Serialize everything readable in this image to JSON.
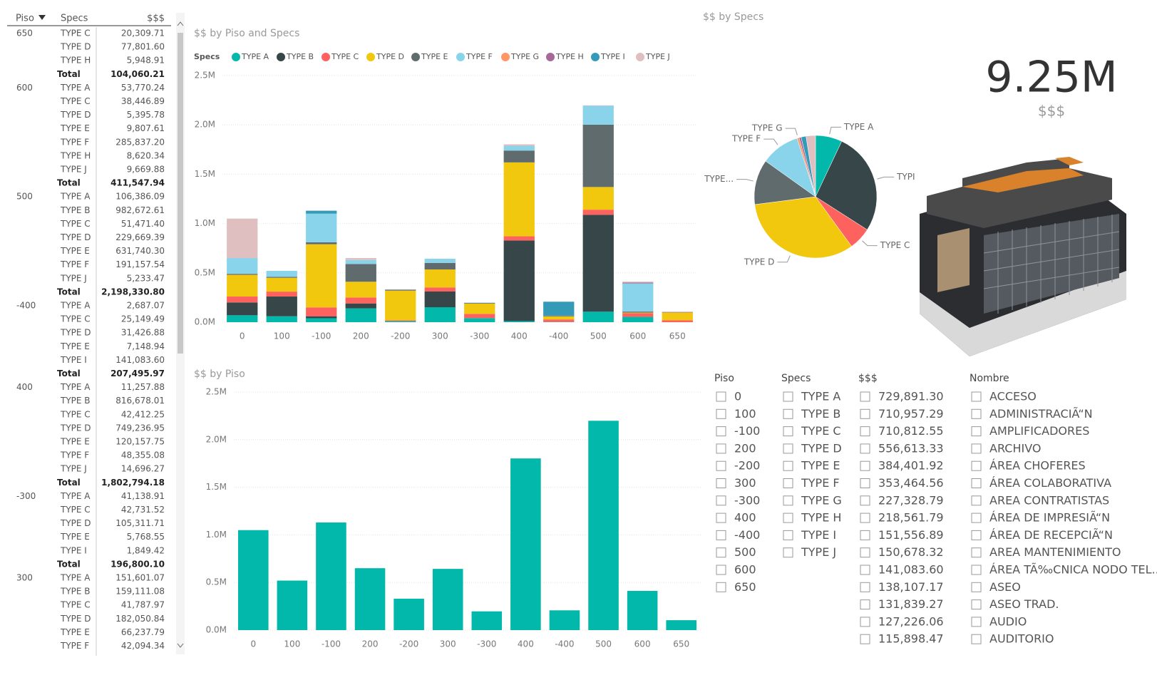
{
  "table": {
    "columns": [
      "Piso",
      "Specs",
      "$$$"
    ],
    "groups": [
      {
        "piso": "650",
        "rows": [
          [
            "TYPE C",
            "20,309.71"
          ],
          [
            "TYPE D",
            "77,801.60"
          ],
          [
            "TYPE H",
            "5,948.91"
          ]
        ],
        "total": [
          "Total",
          "104,060.21"
        ]
      },
      {
        "piso": "600",
        "rows": [
          [
            "TYPE A",
            "53,770.24"
          ],
          [
            "TYPE C",
            "38,446.89"
          ],
          [
            "TYPE D",
            "5,395.78"
          ],
          [
            "TYPE E",
            "9,807.61"
          ],
          [
            "TYPE F",
            "285,837.20"
          ],
          [
            "TYPE H",
            "8,620.34"
          ],
          [
            "TYPE J",
            "9,669.88"
          ]
        ],
        "total": [
          "Total",
          "411,547.94"
        ]
      },
      {
        "piso": "500",
        "rows": [
          [
            "TYPE A",
            "106,386.09"
          ],
          [
            "TYPE B",
            "982,672.61"
          ],
          [
            "TYPE C",
            "51,471.40"
          ],
          [
            "TYPE D",
            "229,669.39"
          ],
          [
            "TYPE E",
            "631,740.30"
          ],
          [
            "TYPE F",
            "191,157.54"
          ],
          [
            "TYPE J",
            "5,233.47"
          ]
        ],
        "total": [
          "Total",
          "2,198,330.80"
        ]
      },
      {
        "piso": "-400",
        "rows": [
          [
            "TYPE A",
            "2,687.07"
          ],
          [
            "TYPE C",
            "25,149.49"
          ],
          [
            "TYPE D",
            "31,426.88"
          ],
          [
            "TYPE E",
            "7,148.94"
          ],
          [
            "TYPE I",
            "141,083.60"
          ]
        ],
        "total": [
          "Total",
          "207,495.97"
        ]
      },
      {
        "piso": "400",
        "rows": [
          [
            "TYPE A",
            "11,257.88"
          ],
          [
            "TYPE B",
            "816,678.01"
          ],
          [
            "TYPE C",
            "42,412.25"
          ],
          [
            "TYPE D",
            "749,236.95"
          ],
          [
            "TYPE E",
            "120,157.75"
          ],
          [
            "TYPE F",
            "48,355.08"
          ],
          [
            "TYPE J",
            "14,696.27"
          ]
        ],
        "total": [
          "Total",
          "1,802,794.18"
        ]
      },
      {
        "piso": "-300",
        "rows": [
          [
            "TYPE A",
            "41,138.91"
          ],
          [
            "TYPE C",
            "42,731.52"
          ],
          [
            "TYPE D",
            "105,311.71"
          ],
          [
            "TYPE E",
            "5,768.55"
          ],
          [
            "TYPE I",
            "1,849.42"
          ]
        ],
        "total": [
          "Total",
          "196,800.10"
        ]
      },
      {
        "piso": "300",
        "rows": [
          [
            "TYPE A",
            "151,601.07"
          ],
          [
            "TYPE B",
            "159,111.08"
          ],
          [
            "TYPE C",
            "41,787.97"
          ],
          [
            "TYPE D",
            "182,050.84"
          ],
          [
            "TYPE E",
            "66,237.79"
          ],
          [
            "TYPE F",
            "42,094.34"
          ]
        ]
      }
    ]
  },
  "chart_data": [
    {
      "type": "stacked_bar",
      "title": "$$ by Piso and Specs",
      "legend_title": "Specs",
      "categories": [
        "0",
        "100",
        "-100",
        "200",
        "-200",
        "300",
        "-300",
        "400",
        "-400",
        "500",
        "600",
        "650"
      ],
      "series": [
        {
          "name": "TYPE A",
          "color": "#01b8aa",
          "values": [
            70000,
            60000,
            40000,
            140000,
            10000,
            151601.07,
            41138.91,
            11257.88,
            2687.07,
            106386.09,
            53770.24,
            0
          ]
        },
        {
          "name": "TYPE B",
          "color": "#374649",
          "values": [
            130000,
            200000,
            20000,
            50000,
            0,
            159111.08,
            0,
            816678.01,
            0,
            982672.61,
            0,
            0
          ]
        },
        {
          "name": "TYPE C",
          "color": "#fd625e",
          "values": [
            60000,
            50000,
            90000,
            60000,
            10000,
            41787.97,
            42731.52,
            42412.25,
            25149.49,
            51471.4,
            38446.89,
            20309.71
          ]
        },
        {
          "name": "TYPE D",
          "color": "#f2c80f",
          "values": [
            220000,
            140000,
            640000,
            160000,
            300000,
            182050.84,
            105311.71,
            749236.95,
            31426.88,
            229669.39,
            5395.78,
            77801.6
          ]
        },
        {
          "name": "TYPE E",
          "color": "#5f6b6d",
          "values": [
            10000,
            10000,
            20000,
            180000,
            10000,
            66237.79,
            5768.55,
            120157.75,
            7148.94,
            631740.3,
            9807.61,
            0
          ]
        },
        {
          "name": "TYPE F",
          "color": "#8ad4eb",
          "values": [
            160000,
            60000,
            290000,
            40000,
            0,
            42094.34,
            0,
            48355.08,
            0,
            191157.54,
            285837.2,
            0
          ]
        },
        {
          "name": "TYPE G",
          "color": "#fe9666",
          "values": [
            0,
            0,
            0,
            0,
            0,
            0,
            0,
            0,
            0,
            0,
            0,
            0
          ]
        },
        {
          "name": "TYPE H",
          "color": "#a66999",
          "values": [
            0,
            0,
            0,
            0,
            0,
            0,
            0,
            0,
            0,
            0,
            8620.34,
            5948.91
          ]
        },
        {
          "name": "TYPE I",
          "color": "#3599b8",
          "values": [
            0,
            0,
            30000,
            0,
            0,
            0,
            1849.42,
            0,
            141083.6,
            0,
            0,
            0
          ]
        },
        {
          "name": "TYPE J",
          "color": "#dfbfbf",
          "values": [
            400000,
            0,
            0,
            20000,
            0,
            0,
            0,
            14696.27,
            0,
            5233.47,
            9669.88,
            0
          ]
        }
      ],
      "ylim": [
        0,
        2500000
      ],
      "yticks": [
        {
          "value": 0,
          "label": "0.0M"
        },
        {
          "value": 500000,
          "label": "0.5M"
        },
        {
          "value": 1000000,
          "label": "1.0M"
        },
        {
          "value": 1500000,
          "label": "1.5M"
        },
        {
          "value": 2000000,
          "label": "2.0M"
        },
        {
          "value": 2500000,
          "label": "2.5M"
        }
      ],
      "grid": true,
      "legend": "top"
    },
    {
      "type": "bar",
      "title": "$$ by Piso",
      "color": "#01b8aa",
      "categories": [
        "0",
        "100",
        "-100",
        "200",
        "-200",
        "300",
        "-300",
        "400",
        "-400",
        "500",
        "600",
        "650"
      ],
      "values": [
        1050000,
        520000,
        1130000,
        650000,
        330000,
        642882.09,
        196800.1,
        1802794.18,
        207495.97,
        2198330.8,
        411547.94,
        104060.21
      ],
      "ylim": [
        0,
        2500000
      ],
      "yticks": [
        {
          "value": 0,
          "label": "0.0M"
        },
        {
          "value": 500000,
          "label": "0.5M"
        },
        {
          "value": 1000000,
          "label": "1.0M"
        },
        {
          "value": 1500000,
          "label": "1.5M"
        },
        {
          "value": 2000000,
          "label": "2.0M"
        },
        {
          "value": 2500000,
          "label": "2.5M"
        }
      ],
      "grid": true
    },
    {
      "type": "pie",
      "title": "$$ by Specs",
      "categories": [
        "TYPE A",
        "TYPI",
        "TYPE C",
        "TYPE D",
        "TYPE...",
        "TYPE F",
        "TYPE G",
        null,
        null,
        null
      ],
      "values": [
        650000,
        2500000,
        550000,
        3050000,
        1100000,
        950000,
        50000,
        50000,
        120000,
        230000
      ],
      "colors": [
        "#01b8aa",
        "#374649",
        "#fd625e",
        "#f2c80f",
        "#5f6b6d",
        "#8ad4eb",
        "#fe9666",
        "#a66999",
        "#3599b8",
        "#dfbfbf"
      ]
    }
  ],
  "card": {
    "value": "9.25M",
    "label": "$$$"
  },
  "slicers": [
    {
      "title": "Piso",
      "items": [
        "0",
        "100",
        "-100",
        "200",
        "-200",
        "300",
        "-300",
        "400",
        "-400",
        "500",
        "600",
        "650"
      ]
    },
    {
      "title": "Specs",
      "items": [
        "TYPE A",
        "TYPE B",
        "TYPE C",
        "TYPE D",
        "TYPE E",
        "TYPE F",
        "TYPE G",
        "TYPE H",
        "TYPE I",
        "TYPE J"
      ]
    },
    {
      "title": "$$$",
      "items": [
        "729,891.30",
        "710,957.29",
        "710,812.55",
        "556,613.33",
        "384,401.92",
        "353,464.56",
        "227,328.79",
        "218,561.79",
        "151,556.89",
        "150,678.32",
        "141,083.60",
        "138,107.17",
        "131,839.27",
        "127,226.06",
        "115,898.47"
      ]
    },
    {
      "title": "Nombre",
      "items": [
        "ACCESO",
        "ADMINISTRACIÃ“N",
        "AMPLIFICADORES",
        "ARCHIVO",
        "ÁREA CHOFERES",
        "ÁREA COLABORATIVA",
        "AREA CONTRATISTAS",
        "ÁREA DE IMPRESIÃ“N",
        "ÁREA DE RECEPCIÃ“N",
        "AREA MANTENIMIENTO",
        "ÁREA TÃ‰CNICA NODO TEL...",
        "ASEO",
        "ASEO TRAD.",
        "AUDIO",
        "AUDITORIO"
      ]
    }
  ]
}
